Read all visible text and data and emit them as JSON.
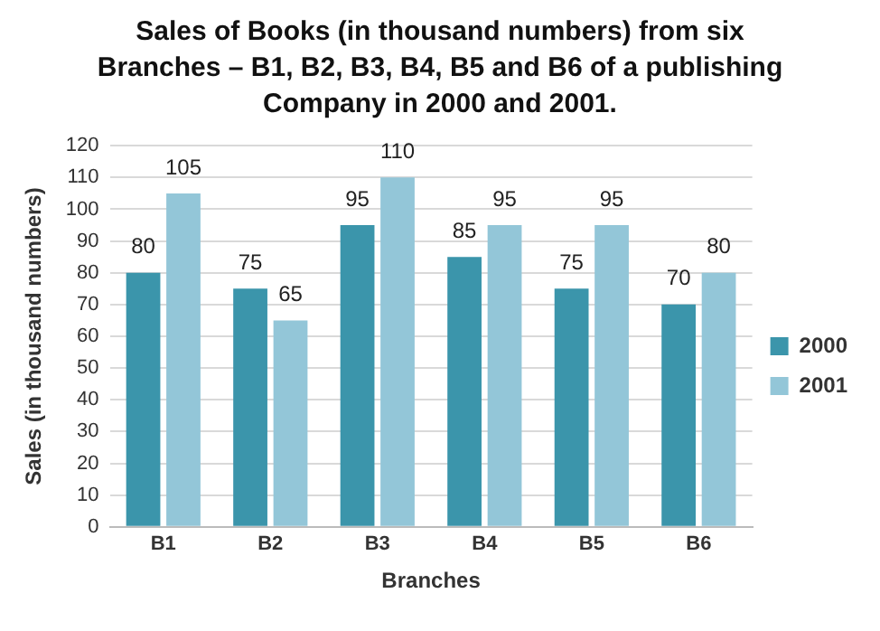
{
  "chart_data": {
    "type": "bar",
    "title": "Sales of Books (in thousand numbers) from six Branches – B1, B2, B3, B4, B5 and B6 of a publishing Company in 2000 and 2001.",
    "xlabel": "Branches",
    "ylabel": "Sales (in thousand numbers)",
    "categories": [
      "B1",
      "B2",
      "B3",
      "B4",
      "B5",
      "B6"
    ],
    "series": [
      {
        "name": "2000",
        "color": "#3b95ab",
        "values": [
          80,
          75,
          95,
          85,
          75,
          70
        ]
      },
      {
        "name": "2001",
        "color": "#93c6d8",
        "values": [
          105,
          65,
          110,
          95,
          95,
          80
        ]
      }
    ],
    "ylim": [
      0,
      120
    ],
    "yticks": [
      0,
      10,
      20,
      30,
      40,
      50,
      60,
      70,
      80,
      90,
      100,
      110,
      120
    ],
    "grid": "y",
    "legend": "right",
    "data_labels": true
  }
}
